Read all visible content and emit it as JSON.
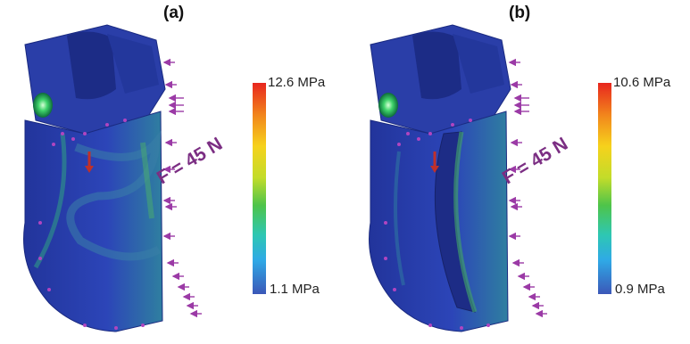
{
  "panels": [
    {
      "title": "(a)",
      "max_label": "12.6 MPa",
      "min_label": "1.1 MPa",
      "force_label": "F = 45 N"
    },
    {
      "title": "(b)",
      "max_label": "10.6 MPa",
      "min_label": "0.9 MPa",
      "force_label": "F = 45 N"
    }
  ],
  "colors": {
    "part_blue": "#2c3fae",
    "load_arrow": "#9b3aa6",
    "force_text": "#7b2e83",
    "fixture_arrow": "#c0302a",
    "hole_green": "#3fd36a"
  }
}
